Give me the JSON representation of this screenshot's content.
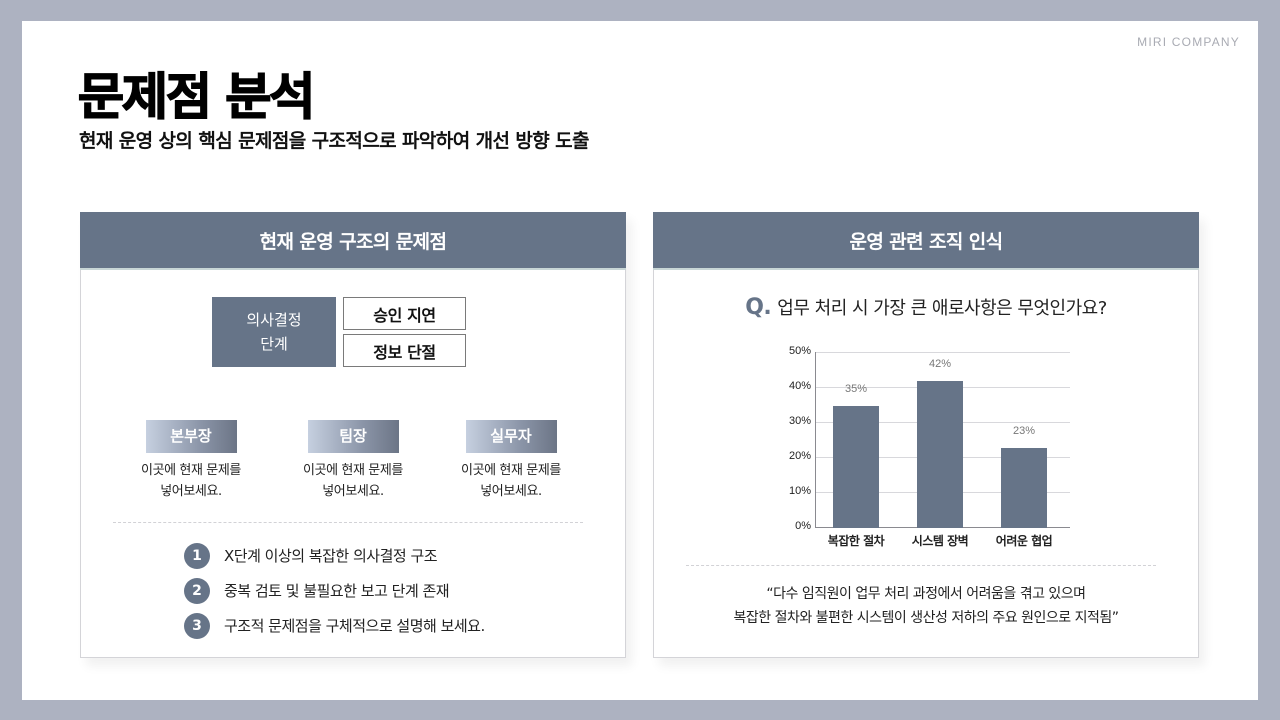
{
  "brand": "MIRI COMPANY",
  "title": "문제점 분석",
  "subtitle": "현재 운영 상의 핵심 문제점을 구조적으로 파악하여 개선 방향 도출",
  "colors": {
    "accent": "#667488",
    "background": "#adb2c1",
    "slide": "#ffffff"
  },
  "left_panel": {
    "header": "현재 운영 구조의 문제점",
    "decision_stage": {
      "line1": "의사결정",
      "line2": "단계"
    },
    "issues": [
      "승인 지연",
      "정보 단절"
    ],
    "roles": [
      {
        "tag": "본부장",
        "desc_line1": "이곳에 현재 문제를",
        "desc_line2": "넣어보세요."
      },
      {
        "tag": "팀장",
        "desc_line1": "이곳에 현재 문제를",
        "desc_line2": "넣어보세요."
      },
      {
        "tag": "실무자",
        "desc_line1": "이곳에 현재 문제를",
        "desc_line2": "넣어보세요."
      }
    ],
    "points": [
      {
        "num": "1",
        "text": "X단계 이상의 복잡한 의사결정 구조"
      },
      {
        "num": "2",
        "text": "중복 검토 및 불필요한 보고 단계 존재"
      },
      {
        "num": "3",
        "text": "구조적 문제점을 구체적으로 설명해 보세요."
      }
    ]
  },
  "right_panel": {
    "header": "운영 관련 조직 인식",
    "question_mark": "Q.",
    "question": "업무 처리 시 가장 큰 애로사항은 무엇인가요?",
    "quote_line1": "“다수 임직원이 업무 처리 과정에서 어려움을 겪고 있으며",
    "quote_line2": "복잡한 절차와 불편한 시스템이 생산성 저하의 주요 원인으로 지적됨”"
  },
  "chart_data": {
    "type": "bar",
    "title": "업무 처리 시 가장 큰 애로사항은 무엇인가요?",
    "categories": [
      "복잡한 절차",
      "시스템 장벽",
      "어려운 협업"
    ],
    "values": [
      35,
      42,
      23
    ],
    "value_labels": [
      "35%",
      "42%",
      "23%"
    ],
    "xlabel": "",
    "ylabel": "",
    "ylim": [
      0,
      50
    ],
    "yticks": [
      "0%",
      "10%",
      "20%",
      "30%",
      "40%",
      "50%"
    ],
    "grid": true,
    "legend": "none",
    "bar_color": "#667488"
  }
}
